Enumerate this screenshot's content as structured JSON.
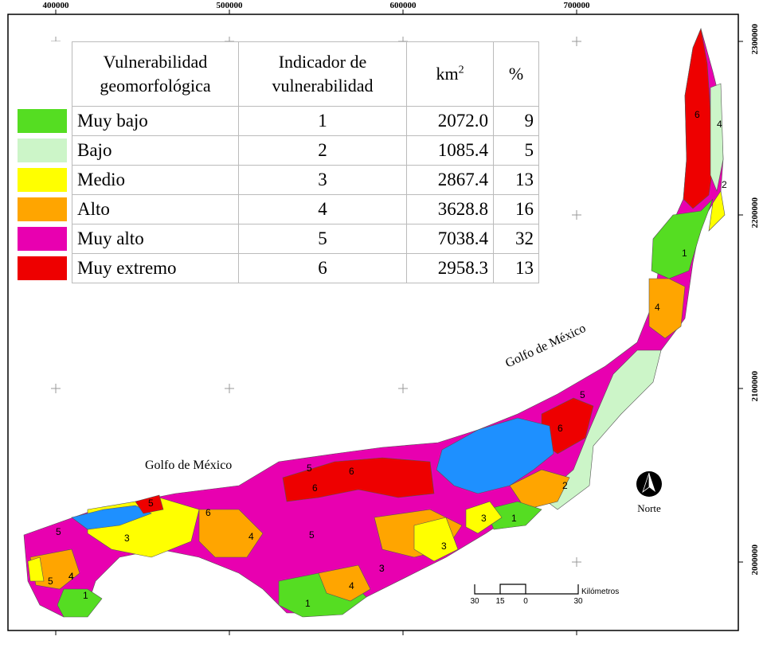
{
  "grid": {
    "x_ticks": [
      "400000",
      "500000",
      "600000",
      "700000"
    ],
    "y_ticks": [
      "2300000",
      "2200000",
      "2100000",
      "2000000"
    ]
  },
  "legend": {
    "header": {
      "vulnerability": "Vulnerabilidad geomorfológica",
      "indicator": "Indicador de vulnerabilidad",
      "area_unit": "km",
      "area_unit_sup": "2",
      "percent": "%"
    },
    "rows": [
      {
        "name": "Muy bajo",
        "indicator": "1",
        "km2": "2072.0",
        "pct": "9",
        "color": "#55dd22"
      },
      {
        "name": "Bajo",
        "indicator": "2",
        "km2": "1085.4",
        "pct": "5",
        "color": "#ccf5c8"
      },
      {
        "name": "Medio",
        "indicator": "3",
        "km2": "2867.4",
        "pct": "13",
        "color": "#ffff00"
      },
      {
        "name": "Alto",
        "indicator": "4",
        "km2": "3628.8",
        "pct": "16",
        "color": "#ffa500"
      },
      {
        "name": "Muy alto",
        "indicator": "5",
        "km2": "7038.4",
        "pct": "32",
        "color": "#e800b0"
      },
      {
        "name": "Muy extremo",
        "indicator": "6",
        "km2": "2958.3",
        "pct": "13",
        "color": "#ee0000"
      }
    ]
  },
  "map": {
    "water_color": "#1e90ff",
    "label_gulf_west": "Golfo de México",
    "label_gulf_east": "Golfo de México",
    "north_label": "Norte",
    "zone_labels": [
      "6",
      "4",
      "2",
      "1",
      "4",
      "5",
      "6",
      "2",
      "1",
      "3",
      "3",
      "5",
      "6",
      "6",
      "5",
      "4",
      "5",
      "3",
      "4",
      "1",
      "4",
      "3",
      "6",
      "5",
      "5",
      "4",
      "1",
      "3"
    ]
  },
  "scale": {
    "unit": "Kilómetros",
    "ticks": [
      "30",
      "15",
      "0",
      "30"
    ]
  }
}
